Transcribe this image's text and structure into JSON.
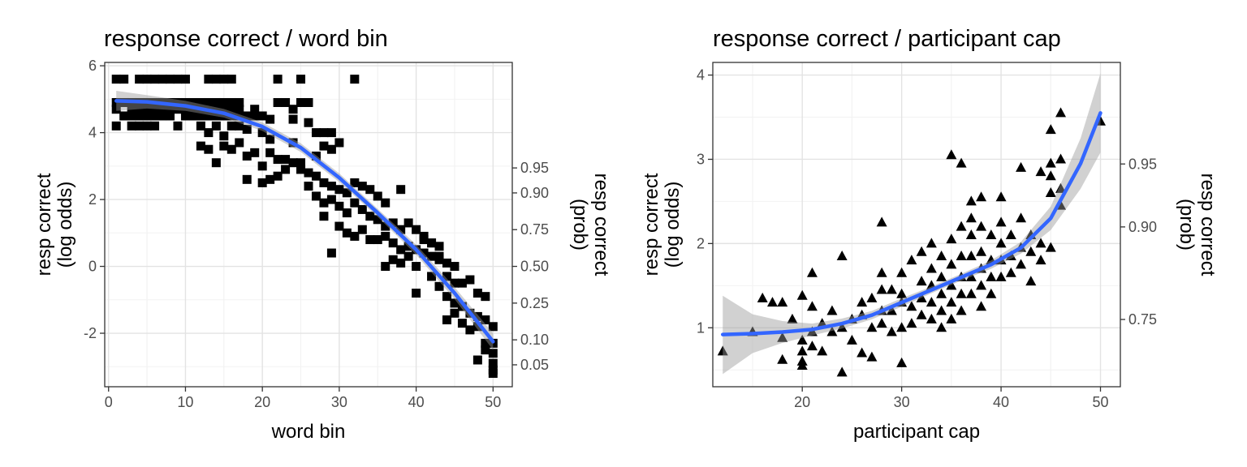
{
  "chart_data": [
    {
      "type": "scatter",
      "title": "response correct / word bin",
      "xlabel": "word bin",
      "ylabel_left": [
        "resp correct",
        "(log odds)"
      ],
      "ylabel_right": [
        "resp correct",
        "(prob)"
      ],
      "xlim": [
        -0.5,
        52.5
      ],
      "ylim": [
        -3.6,
        6.1
      ],
      "x_ticks": [
        0,
        10,
        20,
        30,
        40,
        50
      ],
      "y_ticks": [
        -2,
        0,
        2,
        4,
        6
      ],
      "prob_ticks": [
        0.05,
        0.1,
        0.25,
        0.5,
        0.75,
        0.9,
        0.95
      ],
      "grid": true,
      "marker": "square",
      "points": [
        [
          1,
          5.6
        ],
        [
          2,
          5.6
        ],
        [
          4,
          5.6
        ],
        [
          5,
          5.6
        ],
        [
          6,
          5.6
        ],
        [
          7,
          5.6
        ],
        [
          8,
          5.6
        ],
        [
          9,
          5.6
        ],
        [
          10,
          5.6
        ],
        [
          13,
          5.6
        ],
        [
          14,
          5.6
        ],
        [
          15,
          5.6
        ],
        [
          16,
          5.6
        ],
        [
          22,
          5.6
        ],
        [
          25,
          5.6
        ],
        [
          32,
          5.6
        ],
        [
          1,
          4.9
        ],
        [
          2,
          4.9
        ],
        [
          3,
          4.9
        ],
        [
          4,
          4.9
        ],
        [
          5,
          4.9
        ],
        [
          6,
          4.9
        ],
        [
          7,
          4.9
        ],
        [
          8,
          4.9
        ],
        [
          9,
          4.9
        ],
        [
          10,
          4.9
        ],
        [
          11,
          4.9
        ],
        [
          12,
          4.9
        ],
        [
          13,
          4.9
        ],
        [
          14,
          4.9
        ],
        [
          15,
          4.9
        ],
        [
          16,
          4.9
        ],
        [
          17,
          4.9
        ],
        [
          22,
          4.9
        ],
        [
          23,
          4.9
        ],
        [
          25,
          4.9
        ],
        [
          26,
          4.9
        ],
        [
          1,
          4.7
        ],
        [
          3,
          4.7
        ],
        [
          4,
          4.7
        ],
        [
          5,
          4.7
        ],
        [
          6,
          4.7
        ],
        [
          7,
          4.7
        ],
        [
          8,
          4.7
        ],
        [
          9,
          4.7
        ],
        [
          10,
          4.7
        ],
        [
          11,
          4.7
        ],
        [
          12,
          4.7
        ],
        [
          13,
          4.7
        ],
        [
          14,
          4.7
        ],
        [
          15,
          4.7
        ],
        [
          16,
          4.7
        ],
        [
          17,
          4.7
        ],
        [
          19,
          4.7
        ],
        [
          24,
          4.7
        ],
        [
          2,
          4.5
        ],
        [
          3,
          4.5
        ],
        [
          4,
          4.5
        ],
        [
          5,
          4.5
        ],
        [
          6,
          4.5
        ],
        [
          7,
          4.5
        ],
        [
          8,
          4.5
        ],
        [
          10,
          4.5
        ],
        [
          11,
          4.5
        ],
        [
          12,
          4.5
        ],
        [
          13,
          4.5
        ],
        [
          14,
          4.5
        ],
        [
          15,
          4.5
        ],
        [
          16,
          4.5
        ],
        [
          17,
          4.5
        ],
        [
          18,
          4.5
        ],
        [
          19,
          4.5
        ],
        [
          20,
          4.5
        ],
        [
          1,
          4.2
        ],
        [
          3,
          4.2
        ],
        [
          4,
          4.2
        ],
        [
          5,
          4.2
        ],
        [
          6,
          4.2
        ],
        [
          9,
          4.2
        ],
        [
          12,
          4.2
        ],
        [
          14,
          4.2
        ],
        [
          16,
          4.2
        ],
        [
          17,
          4.2
        ],
        [
          21,
          4.4
        ],
        [
          24,
          4.4
        ],
        [
          26,
          4.3
        ],
        [
          13,
          4.0
        ],
        [
          15,
          3.9
        ],
        [
          18,
          4.1
        ],
        [
          20,
          4.0
        ],
        [
          21,
          3.8
        ],
        [
          24,
          3.7
        ],
        [
          27,
          4.0
        ],
        [
          28,
          4.0
        ],
        [
          29,
          4.0
        ],
        [
          28,
          3.6
        ],
        [
          30,
          3.7
        ],
        [
          12,
          3.6
        ],
        [
          13,
          3.5
        ],
        [
          15,
          3.6
        ],
        [
          16,
          3.5
        ],
        [
          17,
          3.7
        ],
        [
          18,
          3.3
        ],
        [
          19,
          3.4
        ],
        [
          21,
          3.4
        ],
        [
          23,
          3.2
        ],
        [
          25,
          3.1
        ],
        [
          14,
          3.1
        ],
        [
          20,
          3.0
        ],
        [
          22,
          3.2
        ],
        [
          24,
          3.1
        ],
        [
          27,
          3.3
        ],
        [
          29,
          3.5
        ],
        [
          18,
          2.6
        ],
        [
          20,
          2.5
        ],
        [
          21,
          2.6
        ],
        [
          22,
          2.7
        ],
        [
          23,
          2.9
        ],
        [
          25,
          2.9
        ],
        [
          26,
          2.8
        ],
        [
          27,
          2.7
        ],
        [
          28,
          2.5
        ],
        [
          29,
          2.4
        ],
        [
          30,
          2.3
        ],
        [
          31,
          2.2
        ],
        [
          32,
          2.5
        ],
        [
          33,
          2.4
        ],
        [
          34,
          2.3
        ],
        [
          35,
          2.1
        ],
        [
          36,
          1.9
        ],
        [
          38,
          2.3
        ],
        [
          26,
          2.4
        ],
        [
          27,
          2.1
        ],
        [
          28,
          1.9
        ],
        [
          29,
          2.0
        ],
        [
          30,
          1.8
        ],
        [
          31,
          1.6
        ],
        [
          32,
          1.9
        ],
        [
          33,
          1.7
        ],
        [
          34,
          1.5
        ],
        [
          35,
          1.4
        ],
        [
          36,
          1.2
        ],
        [
          37,
          1.3
        ],
        [
          38,
          1.1
        ],
        [
          39,
          1.3
        ],
        [
          40,
          1.1
        ],
        [
          41,
          0.9
        ],
        [
          42,
          0.7
        ],
        [
          43,
          0.6
        ],
        [
          28,
          1.5
        ],
        [
          30,
          1.2
        ],
        [
          31,
          1.0
        ],
        [
          32,
          0.9
        ],
        [
          33,
          1.1
        ],
        [
          34,
          0.8
        ],
        [
          35,
          0.8
        ],
        [
          36,
          0.9
        ],
        [
          37,
          0.7
        ],
        [
          38,
          0.5
        ],
        [
          39,
          0.6
        ],
        [
          40,
          0.5
        ],
        [
          41,
          0.4
        ],
        [
          42,
          0.3
        ],
        [
          43,
          0.2
        ],
        [
          44,
          0.1
        ],
        [
          45,
          0.0
        ],
        [
          29,
          0.4
        ],
        [
          36,
          0.0
        ],
        [
          37,
          0.2
        ],
        [
          38,
          0.1
        ],
        [
          39,
          0.3
        ],
        [
          40,
          0.0
        ],
        [
          41,
          0.8
        ],
        [
          42,
          0.7
        ],
        [
          43,
          0.3
        ],
        [
          44,
          -0.3
        ],
        [
          45,
          -0.5
        ],
        [
          46,
          -0.5
        ],
        [
          47,
          -0.4
        ],
        [
          48,
          -0.8
        ],
        [
          49,
          -0.9
        ],
        [
          40,
          -0.8
        ],
        [
          42,
          -0.3
        ],
        [
          43,
          -0.6
        ],
        [
          44,
          -0.9
        ],
        [
          45,
          -1.1
        ],
        [
          46,
          -1.2
        ],
        [
          47,
          -1.4
        ],
        [
          48,
          -1.5
        ],
        [
          49,
          -1.6
        ],
        [
          50,
          -1.8
        ],
        [
          44,
          -1.6
        ],
        [
          45,
          -1.4
        ],
        [
          46,
          -1.7
        ],
        [
          47,
          -1.9
        ],
        [
          48,
          -1.8
        ],
        [
          49,
          -2.3
        ],
        [
          50,
          -2.3
        ],
        [
          49,
          -2.5
        ],
        [
          50,
          -2.6
        ],
        [
          48,
          -2.8
        ],
        [
          50,
          -2.9
        ],
        [
          50,
          -3.1
        ],
        [
          50,
          -3.2
        ]
      ],
      "smooth": {
        "color": "#3366FF",
        "x": [
          1,
          5,
          10,
          15,
          20,
          25,
          30,
          35,
          40,
          45,
          50
        ],
        "y": [
          4.95,
          4.92,
          4.8,
          4.58,
          4.18,
          3.55,
          2.65,
          1.6,
          0.5,
          -0.8,
          -2.25
        ],
        "band_low": [
          4.65,
          4.72,
          4.65,
          4.45,
          4.05,
          3.42,
          2.52,
          1.48,
          0.35,
          -0.98,
          -2.5
        ],
        "band_high": [
          5.25,
          5.12,
          4.95,
          4.71,
          4.31,
          3.68,
          2.78,
          1.72,
          0.65,
          -0.62,
          -2.0
        ]
      }
    },
    {
      "type": "scatter",
      "title": "response correct / participant cap",
      "xlabel": "participant cap",
      "ylabel_left": [
        "resp correct",
        "(log odds)"
      ],
      "ylabel_right": [
        "resp correct",
        "(prob)"
      ],
      "xlim": [
        11.0,
        52.0
      ],
      "ylim": [
        0.3,
        4.15
      ],
      "x_ticks": [
        20,
        30,
        40,
        50
      ],
      "y_ticks": [
        1,
        2,
        3,
        4
      ],
      "prob_ticks": [
        0.75,
        0.9,
        0.95
      ],
      "grid": true,
      "marker": "triangle",
      "points": [
        [
          12,
          0.72
        ],
        [
          15,
          0.95
        ],
        [
          16,
          1.35
        ],
        [
          17,
          1.3
        ],
        [
          18,
          1.3
        ],
        [
          18,
          0.88
        ],
        [
          18,
          0.62
        ],
        [
          19,
          1.1
        ],
        [
          20,
          1.38
        ],
        [
          20,
          0.85
        ],
        [
          20,
          0.72
        ],
        [
          20,
          0.6
        ],
        [
          20,
          0.55
        ],
        [
          21,
          1.25
        ],
        [
          21,
          1.65
        ],
        [
          21,
          0.78
        ],
        [
          21,
          0.95
        ],
        [
          22,
          1.05
        ],
        [
          22,
          0.72
        ],
        [
          23,
          1.2
        ],
        [
          23,
          0.95
        ],
        [
          24,
          1.85
        ],
        [
          24,
          0.47
        ],
        [
          24,
          1.0
        ],
        [
          25,
          0.85
        ],
        [
          25,
          1.1
        ],
        [
          26,
          1.15
        ],
        [
          26,
          1.3
        ],
        [
          26,
          0.7
        ],
        [
          27,
          1.35
        ],
        [
          27,
          1.0
        ],
        [
          27,
          0.65
        ],
        [
          28,
          1.05
        ],
        [
          28,
          1.2
        ],
        [
          28,
          2.25
        ],
        [
          28,
          1.65
        ],
        [
          28,
          1.45
        ],
        [
          29,
          1.45
        ],
        [
          29,
          1.2
        ],
        [
          29,
          0.95
        ],
        [
          30,
          1.3
        ],
        [
          30,
          1.0
        ],
        [
          30,
          0.58
        ],
        [
          30,
          1.4
        ],
        [
          30,
          1.65
        ],
        [
          31,
          1.8
        ],
        [
          31,
          1.25
        ],
        [
          31,
          1.05
        ],
        [
          32,
          1.9
        ],
        [
          32,
          1.55
        ],
        [
          32,
          1.35
        ],
        [
          32,
          1.15
        ],
        [
          33,
          1.7
        ],
        [
          33,
          1.5
        ],
        [
          33,
          1.3
        ],
        [
          33,
          1.1
        ],
        [
          33,
          2.0
        ],
        [
          34,
          1.85
        ],
        [
          34,
          1.6
        ],
        [
          34,
          1.4
        ],
        [
          34,
          1.2
        ],
        [
          34,
          1.0
        ],
        [
          35,
          3.05
        ],
        [
          35,
          2.05
        ],
        [
          35,
          1.75
        ],
        [
          35,
          1.5
        ],
        [
          35,
          1.3
        ],
        [
          35,
          1.1
        ],
        [
          36,
          2.2
        ],
        [
          36,
          1.85
        ],
        [
          36,
          1.6
        ],
        [
          36,
          1.4
        ],
        [
          36,
          1.2
        ],
        [
          36,
          2.95
        ],
        [
          37,
          2.5
        ],
        [
          37,
          2.1
        ],
        [
          37,
          1.85
        ],
        [
          37,
          1.6
        ],
        [
          37,
          1.4
        ],
        [
          37,
          2.3
        ],
        [
          38,
          2.55
        ],
        [
          38,
          2.2
        ],
        [
          38,
          1.9
        ],
        [
          38,
          1.7
        ],
        [
          38,
          1.5
        ],
        [
          38,
          1.25
        ],
        [
          39,
          2.1
        ],
        [
          39,
          1.8
        ],
        [
          39,
          1.6
        ],
        [
          39,
          1.4
        ],
        [
          40,
          2.55
        ],
        [
          40,
          2.25
        ],
        [
          40,
          2.0
        ],
        [
          40,
          1.8
        ],
        [
          40,
          1.6
        ],
        [
          41,
          2.1
        ],
        [
          41,
          1.85
        ],
        [
          41,
          1.65
        ],
        [
          42,
          2.3
        ],
        [
          42,
          1.95
        ],
        [
          42,
          1.75
        ],
        [
          42,
          2.9
        ],
        [
          43,
          2.1
        ],
        [
          43,
          1.9
        ],
        [
          43,
          1.55
        ],
        [
          44,
          2.85
        ],
        [
          44,
          2.0
        ],
        [
          44,
          1.8
        ],
        [
          45,
          3.35
        ],
        [
          45,
          2.95
        ],
        [
          45,
          2.8
        ],
        [
          45,
          2.6
        ],
        [
          45,
          1.95
        ],
        [
          46,
          3.55
        ],
        [
          46,
          3.0
        ],
        [
          46,
          2.65
        ],
        [
          46,
          2.45
        ],
        [
          50,
          3.45
        ]
      ],
      "smooth": {
        "color": "#3366FF",
        "x": [
          12,
          15,
          18,
          21,
          24,
          27,
          30,
          33,
          36,
          39,
          42,
          45,
          48,
          50
        ],
        "y": [
          0.92,
          0.93,
          0.95,
          0.98,
          1.05,
          1.15,
          1.3,
          1.45,
          1.6,
          1.75,
          1.95,
          2.3,
          2.95,
          3.55
        ],
        "band_low": [
          0.45,
          0.7,
          0.82,
          0.91,
          0.99,
          1.1,
          1.25,
          1.41,
          1.56,
          1.7,
          1.88,
          2.16,
          2.65,
          3.08
        ],
        "band_high": [
          1.38,
          1.16,
          1.08,
          1.05,
          1.11,
          1.2,
          1.35,
          1.49,
          1.64,
          1.8,
          2.02,
          2.44,
          3.25,
          4.02
        ]
      }
    }
  ]
}
